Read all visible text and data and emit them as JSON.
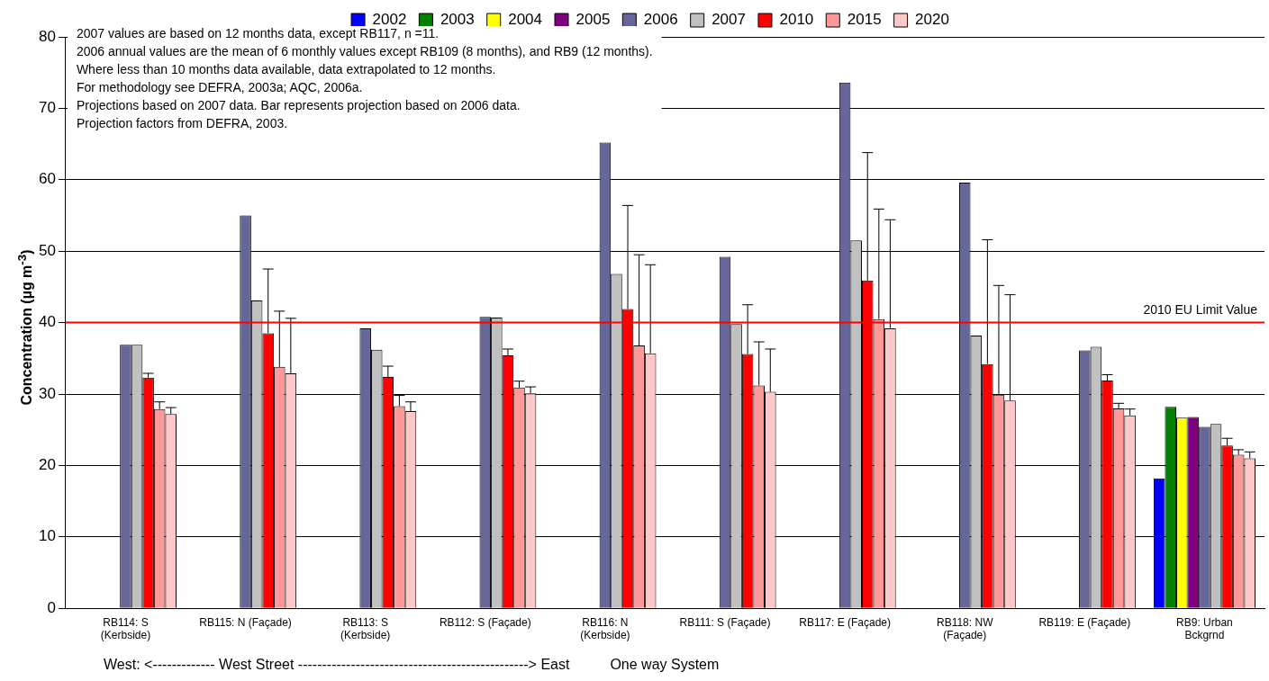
{
  "chart_data": {
    "type": "bar",
    "ylabel": "Concentration (µg m$^{-3}$)",
    "categories": [
      "RB114: S (Kerbside)",
      "RB115: N (Façade)",
      "RB113: S (Kerbside)",
      "RB112: S (Façade)",
      "RB116: N (Kerbside)",
      "RB111: S (Façade)",
      "RB117: E (Façade)",
      "RB118: NW (Façade)",
      "RB119: E (Façade)",
      "RB9: Urban Bckgrnd"
    ],
    "series": [
      {
        "name": "2002",
        "color": "#0000ff",
        "values": [
          null,
          null,
          null,
          null,
          null,
          null,
          null,
          null,
          null,
          18.2
        ]
      },
      {
        "name": "2003",
        "color": "#008000",
        "values": [
          null,
          null,
          null,
          null,
          null,
          null,
          null,
          null,
          null,
          28.2
        ]
      },
      {
        "name": "2004",
        "color": "#ffff00",
        "values": [
          null,
          null,
          null,
          null,
          null,
          null,
          null,
          null,
          null,
          26.7
        ]
      },
      {
        "name": "2005",
        "color": "#800080",
        "values": [
          null,
          null,
          null,
          null,
          null,
          null,
          null,
          null,
          null,
          26.8
        ]
      },
      {
        "name": "2006",
        "color": "#666699",
        "values": [
          36.9,
          55.0,
          39.2,
          40.8,
          65.2,
          49.2,
          73.6,
          59.6,
          36.1,
          25.4
        ]
      },
      {
        "name": "2007",
        "color": "#c0c0c0",
        "values": [
          36.9,
          43.1,
          36.2,
          40.7,
          46.8,
          39.8,
          51.5,
          38.2,
          36.6,
          25.8
        ]
      },
      {
        "name": "2010",
        "color": "#ff0000",
        "values": [
          32.3,
          38.5,
          32.4,
          35.4,
          41.9,
          35.6,
          45.9,
          34.2,
          31.9,
          22.8
        ],
        "errors": [
          [
            32.3,
            32.9
          ],
          [
            38.5,
            47.5
          ],
          [
            32.4,
            33.9
          ],
          [
            35.4,
            36.3
          ],
          [
            41.9,
            56.4
          ],
          [
            35.6,
            42.5
          ],
          [
            45.9,
            63.8
          ],
          [
            34.2,
            51.6
          ],
          [
            31.9,
            32.7
          ],
          [
            22.8,
            23.8
          ]
        ]
      },
      {
        "name": "2015",
        "color": "#ff9999",
        "values": [
          27.9,
          33.8,
          28.3,
          30.9,
          36.8,
          31.2,
          40.5,
          29.9,
          28.0,
          21.5
        ],
        "errors": [
          [
            27.9,
            28.9
          ],
          [
            33.8,
            41.6
          ],
          [
            28.3,
            29.8
          ],
          [
            30.9,
            31.8
          ],
          [
            36.8,
            49.5
          ],
          [
            31.2,
            37.3
          ],
          [
            40.5,
            55.9
          ],
          [
            29.9,
            45.2
          ],
          [
            28.0,
            28.7
          ],
          [
            21.5,
            22.2
          ]
        ]
      },
      {
        "name": "2020",
        "color": "#ffc8c8",
        "values": [
          27.2,
          32.9,
          27.6,
          30.1,
          35.7,
          30.3,
          39.2,
          29.1,
          27.0,
          21.0
        ],
        "errors": [
          [
            27.2,
            28.1
          ],
          [
            32.9,
            40.6
          ],
          [
            27.6,
            28.9
          ],
          [
            30.1,
            31.0
          ],
          [
            35.7,
            48.1
          ],
          [
            30.3,
            36.3
          ],
          [
            39.2,
            54.4
          ],
          [
            29.1,
            43.9
          ],
          [
            27.0,
            27.9
          ],
          [
            21.0,
            21.9
          ]
        ]
      }
    ],
    "ylim": [
      0,
      80
    ],
    "yticks": [
      0,
      10,
      20,
      30,
      40,
      50,
      60,
      70,
      80
    ],
    "grid": "y",
    "legend": "top",
    "ref_lines": [
      {
        "axis": "y",
        "value": 40,
        "label": "2010 EU Limit Value",
        "color": "#ff0000"
      }
    ],
    "annotations": [
      "2007 values are based on 12 months data, except RB117, n =11.",
      "2006 annual values are the mean of 6 monthly values except RB109 (8 months), and RB9 (12 months).",
      "Where less than 10 months data available, data extrapolated to 12 months.",
      "For methodology see DEFRA, 2003a; AQC, 2006a.",
      "Projections based on 2007 data. Bar represents projection based on 2006 data.",
      "Projection factors from DEFRA, 2003.",
      "West: <------------- West Street ------------------------------------------------> East",
      "One way System"
    ]
  }
}
